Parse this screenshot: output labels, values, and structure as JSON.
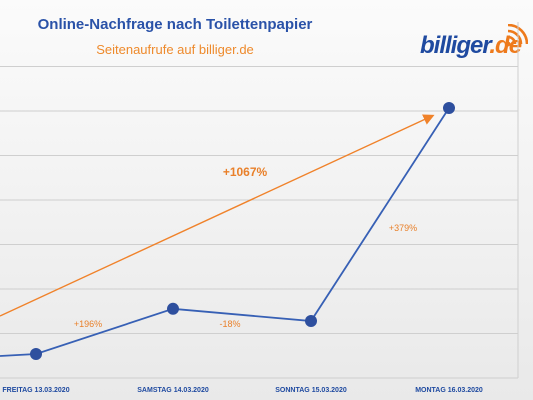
{
  "header": {
    "title": "Online-Nachfrage nach Toilettenpapier",
    "subtitle": "Seitenaufrufe auf billiger.de"
  },
  "logo": {
    "text_main": "billiger",
    "text_dot": ".de",
    "icon": "signal-waves-icon"
  },
  "colors": {
    "line": "#3760b5",
    "marker": "#2e4f9e",
    "trend": "#f0822a",
    "grid": "#cfcfcf",
    "label": "#e9802a",
    "tick": "#1f4aa0"
  },
  "chart_data": {
    "type": "line",
    "categories": [
      "FREITAG 13.03.2020",
      "SAMSTAG 14.03.2020",
      "SONNTAG 15.03.2020",
      "MONTAG 16.03.2020"
    ],
    "values": [
      100,
      296,
      243,
      1167
    ],
    "change_labels": [
      "+196%",
      "-18%",
      "+379%"
    ],
    "trend_label": "+1067%",
    "title": "Online-Nachfrage nach Toilettenpapier",
    "subtitle": "Seitenaufrufe auf billiger.de",
    "xlabel": "",
    "ylabel": "",
    "grid": true,
    "legend": "none"
  }
}
